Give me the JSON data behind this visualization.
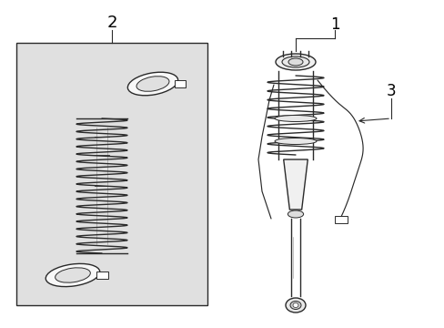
{
  "bg_color": "#ffffff",
  "box_bg": "#e0e0e0",
  "line_color": "#2a2a2a",
  "label_color": "#000000",
  "label_1": "1",
  "label_2": "2",
  "label_3": "3",
  "figw": 4.89,
  "figh": 3.6,
  "dpi": 100
}
